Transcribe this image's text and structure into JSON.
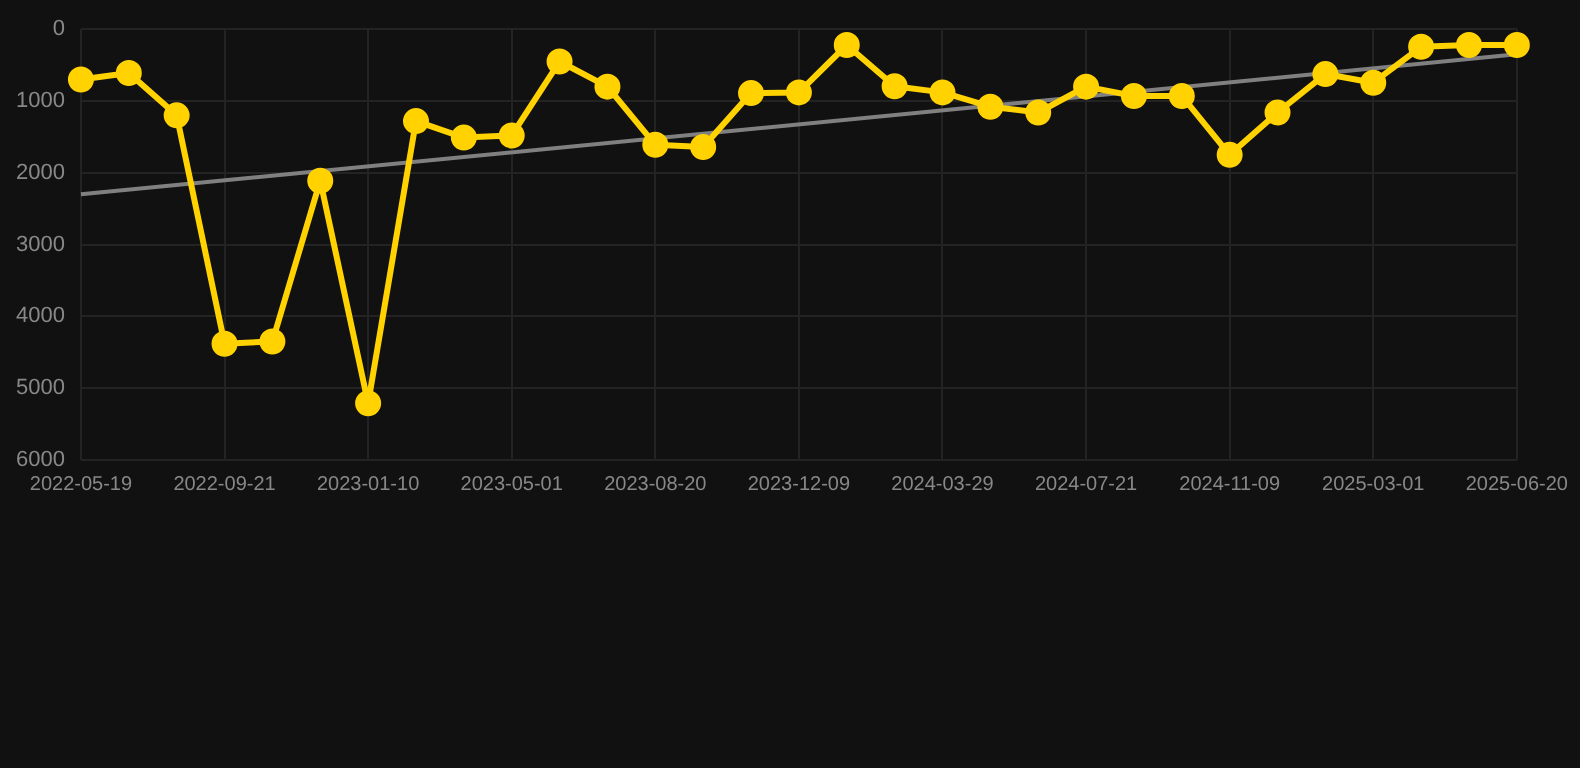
{
  "chart_data": {
    "type": "line",
    "categories": [
      "2022-05-19",
      null,
      null,
      "2022-09-21",
      null,
      null,
      "2023-01-10",
      null,
      null,
      "2023-05-01",
      null,
      null,
      "2023-08-20",
      null,
      null,
      "2023-12-09",
      null,
      null,
      "2024-03-29",
      null,
      null,
      "2024-07-21",
      null,
      null,
      "2024-11-09",
      null,
      null,
      "2025-03-01",
      null,
      null,
      "2025-06-20"
    ],
    "series": [
      {
        "color": "#ffd200",
        "marker": "circle",
        "values": [
          700,
          610,
          1200,
          4380,
          4350,
          2110,
          5210,
          1280,
          1510,
          1480,
          450,
          800,
          1610,
          1640,
          890,
          880,
          220,
          795,
          880,
          1080,
          1160,
          800,
          930,
          930,
          1750,
          1160,
          625,
          745,
          245,
          220,
          220
        ]
      },
      {
        "type": "line",
        "color": "#808080",
        "marker": "none",
        "values": [
          2300,
          null,
          null,
          null,
          null,
          null,
          null,
          null,
          null,
          null,
          null,
          null,
          null,
          null,
          null,
          null,
          null,
          null,
          null,
          null,
          null,
          null,
          null,
          null,
          null,
          null,
          null,
          null,
          null,
          null,
          350
        ]
      }
    ],
    "ylim": [
      6000,
      0
    ],
    "yticks": [
      0,
      1000,
      2000,
      3000,
      4000,
      5000,
      6000
    ],
    "grid": true
  }
}
